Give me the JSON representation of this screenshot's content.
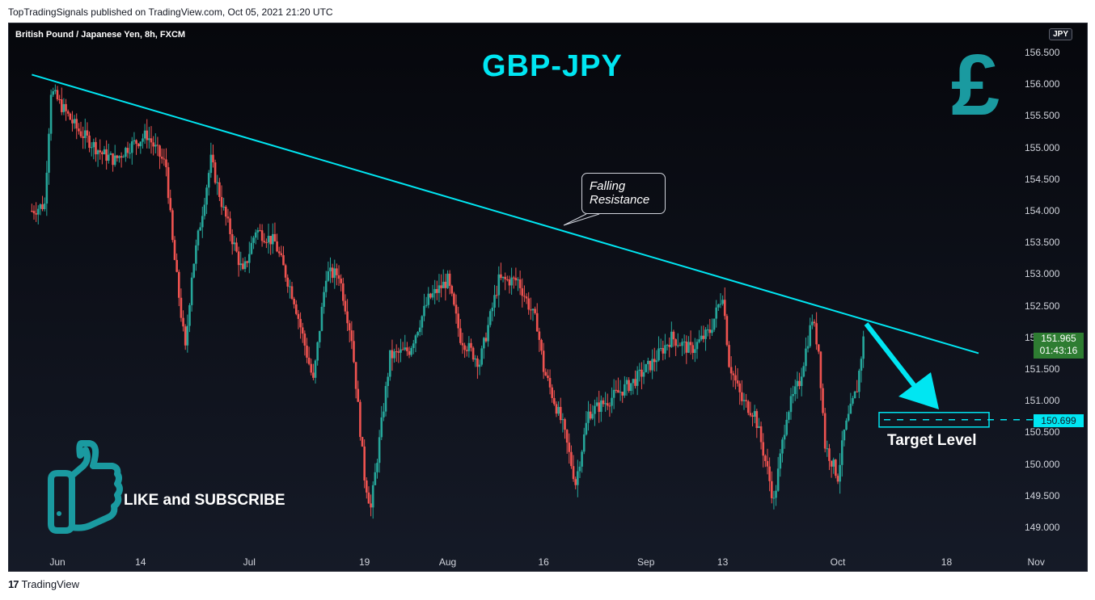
{
  "header": {
    "publisher": "TopTradingSignals published on TradingView.com, Oct 05, 2021 21:20 UTC"
  },
  "footer": {
    "logo_text": "17",
    "brand": "TradingView"
  },
  "chart_info": {
    "symbol": "British Pound / Japanese Yen, 8h, FXCM",
    "currency": "JPY",
    "heading": "GBP-JPY"
  },
  "annotations": {
    "callout_line1": "Falling",
    "callout_line2": "Resistance",
    "target_label": "Target Level",
    "like_label": "LIKE and SUBSCRIBE",
    "pound_symbol": "£"
  },
  "price_tag": {
    "price": "151.965",
    "countdown": "01:43:16",
    "color": "#2e7d32"
  },
  "target_tag": {
    "price": "150.699",
    "color": "#00e6f2"
  },
  "colors": {
    "up": "#26a69a",
    "down": "#ef5350",
    "trendline": "#00e6f2",
    "accent": "#1a9aa0"
  },
  "chart_data": {
    "type": "candlestick",
    "y_ticks": [
      "156.500",
      "156.000",
      "155.500",
      "155.000",
      "154.500",
      "154.000",
      "153.500",
      "153.000",
      "152.500",
      "152.000",
      "151.500",
      "151.000",
      "150.500",
      "150.000",
      "149.500",
      "149.000"
    ],
    "x_ticks": [
      "Jun",
      "14",
      "Jul",
      "19",
      "Aug",
      "16",
      "Sep",
      "13",
      "Oct",
      "18",
      "Nov"
    ],
    "ylim": [
      148.7,
      156.85
    ],
    "trendline": {
      "start": {
        "date": "2021-05-28",
        "value": 156.15
      },
      "end": {
        "date": "2021-10-23",
        "value": 151.75
      }
    },
    "target_level": 150.699,
    "path_keypoints": [
      [
        "2021-05-28",
        154.0
      ],
      [
        "2021-05-30",
        154.1
      ],
      [
        "2021-05-31",
        155.9
      ],
      [
        "2021-06-02",
        155.6
      ],
      [
        "2021-06-04",
        155.3
      ],
      [
        "2021-06-08",
        154.9
      ],
      [
        "2021-06-10",
        154.8
      ],
      [
        "2021-06-12",
        155.0
      ],
      [
        "2021-06-15",
        155.2
      ],
      [
        "2021-06-18",
        154.7
      ],
      [
        "2021-06-19",
        153.5
      ],
      [
        "2021-06-21",
        151.8
      ],
      [
        "2021-06-22",
        153.0
      ],
      [
        "2021-06-25",
        154.8
      ],
      [
        "2021-06-27",
        154.0
      ],
      [
        "2021-06-30",
        153.0
      ],
      [
        "2021-07-02",
        153.7
      ],
      [
        "2021-07-05",
        153.5
      ],
      [
        "2021-07-08",
        152.6
      ],
      [
        "2021-07-11",
        151.3
      ],
      [
        "2021-07-13",
        153.0
      ],
      [
        "2021-07-15",
        153.0
      ],
      [
        "2021-07-17",
        152.0
      ],
      [
        "2021-07-19",
        149.8
      ],
      [
        "2021-07-20",
        149.3
      ],
      [
        "2021-07-23",
        151.7
      ],
      [
        "2021-07-26",
        151.8
      ],
      [
        "2021-07-29",
        152.6
      ],
      [
        "2021-08-01",
        152.9
      ],
      [
        "2021-08-03",
        152.0
      ],
      [
        "2021-08-06",
        151.6
      ],
      [
        "2021-08-09",
        152.9
      ],
      [
        "2021-08-12",
        152.9
      ],
      [
        "2021-08-15",
        152.2
      ],
      [
        "2021-08-16",
        151.5
      ],
      [
        "2021-08-19",
        150.6
      ],
      [
        "2021-08-21",
        149.7
      ],
      [
        "2021-08-23",
        150.8
      ],
      [
        "2021-08-26",
        151.0
      ],
      [
        "2021-08-30",
        151.3
      ],
      [
        "2021-09-02",
        151.6
      ],
      [
        "2021-09-05",
        152.0
      ],
      [
        "2021-09-08",
        151.8
      ],
      [
        "2021-09-11",
        152.1
      ],
      [
        "2021-09-13",
        152.7
      ],
      [
        "2021-09-14",
        151.6
      ],
      [
        "2021-09-16",
        151.0
      ],
      [
        "2021-09-18",
        150.8
      ],
      [
        "2021-09-20",
        149.9
      ],
      [
        "2021-09-21",
        149.4
      ],
      [
        "2021-09-23",
        150.8
      ],
      [
        "2021-09-25",
        151.3
      ],
      [
        "2021-09-27",
        152.3
      ],
      [
        "2021-09-28",
        151.8
      ],
      [
        "2021-09-29",
        150.3
      ],
      [
        "2021-10-01",
        149.8
      ],
      [
        "2021-10-02",
        150.5
      ],
      [
        "2021-10-04",
        151.2
      ],
      [
        "2021-10-05",
        151.97
      ]
    ]
  }
}
